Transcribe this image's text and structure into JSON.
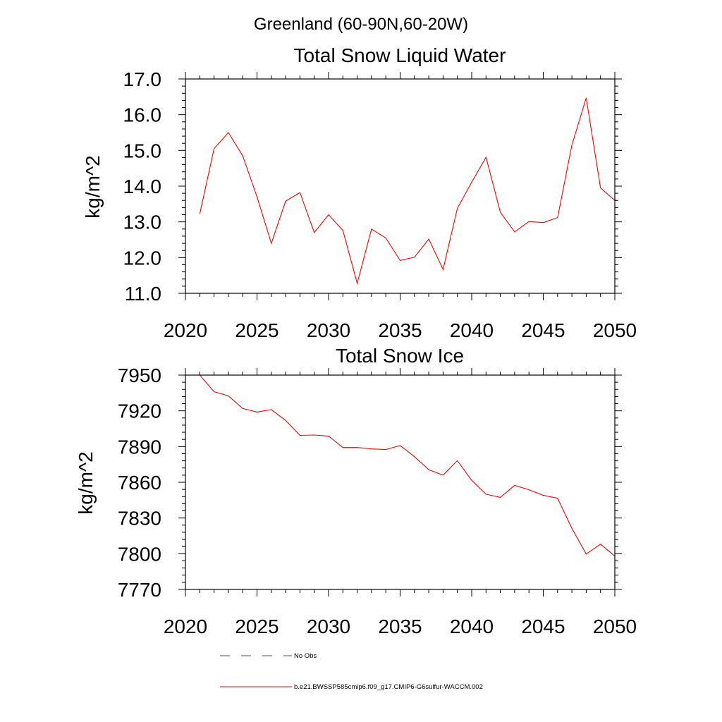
{
  "figure_title": "Greenland (60-90N,60-20W)",
  "chart_data": [
    {
      "type": "line",
      "title": "Total Snow Liquid Water",
      "xlabel": "",
      "ylabel": "kg/m^2",
      "xlim": [
        2020,
        2050
      ],
      "ylim": [
        11.0,
        17.0
      ],
      "xticks": [
        "2020",
        "2025",
        "2030",
        "2035",
        "2040",
        "2045",
        "2050"
      ],
      "yticks": [
        "11.0",
        "12.0",
        "13.0",
        "14.0",
        "15.0",
        "16.0",
        "17.0"
      ],
      "grid": false,
      "series": [
        {
          "name": "b.e21.BWSSP585cmip6.f09_g17.CMIP6-G6sulfur-WACCM.002",
          "color": "#ff0000",
          "x": [
            2021,
            2022,
            2023,
            2024,
            2025,
            2026,
            2027,
            2028,
            2029,
            2030,
            2031,
            2032,
            2033,
            2034,
            2035,
            2036,
            2037,
            2038,
            2039,
            2040,
            2041,
            2042,
            2043,
            2044,
            2045,
            2046,
            2047,
            2048,
            2049,
            2050
          ],
          "values": [
            13.22,
            15.05,
            15.5,
            14.85,
            13.7,
            12.4,
            13.58,
            13.82,
            12.7,
            13.2,
            12.76,
            11.28,
            12.8,
            12.55,
            11.92,
            12.01,
            12.52,
            11.67,
            13.38,
            14.11,
            14.81,
            13.27,
            12.72,
            13.01,
            12.98,
            13.12,
            15.15,
            16.47,
            13.95,
            13.6
          ]
        }
      ]
    },
    {
      "type": "line",
      "title": "Total Snow Ice",
      "xlabel": "",
      "ylabel": "kg/m^2",
      "xlim": [
        2020,
        2050
      ],
      "ylim": [
        7770,
        7950
      ],
      "xticks": [
        "2020",
        "2025",
        "2030",
        "2035",
        "2040",
        "2045",
        "2050"
      ],
      "yticks": [
        "7770",
        "7800",
        "7830",
        "7860",
        "7890",
        "7920",
        "7950"
      ],
      "grid": false,
      "series": [
        {
          "name": "b.e21.BWSSP585cmip6.f09_g17.CMIP6-G6sulfur-WACCM.002",
          "color": "#ff0000",
          "x": [
            2021,
            2022,
            2023,
            2024,
            2025,
            2026,
            2027,
            2028,
            2029,
            2030,
            2031,
            2032,
            2033,
            2034,
            2035,
            2036,
            2037,
            2038,
            2039,
            2040,
            2041,
            2042,
            2043,
            2044,
            2045,
            2046,
            2047,
            2048,
            2049,
            2050
          ],
          "values": [
            7950.0,
            7936.1,
            7932.6,
            7922.0,
            7919.0,
            7921.0,
            7912.0,
            7899.4,
            7899.7,
            7898.8,
            7889.2,
            7889.2,
            7888.0,
            7887.5,
            7890.9,
            7881.5,
            7870.6,
            7866.0,
            7878.2,
            7861.6,
            7850.0,
            7847.3,
            7857.4,
            7853.7,
            7849.0,
            7846.6,
            7821.3,
            7799.8,
            7808.0,
            7798.0
          ]
        }
      ]
    }
  ],
  "legend": {
    "entries": [
      {
        "label": "No Obs",
        "color": "#4a4a8a",
        "style": "dashed"
      },
      {
        "label": "b.e21.BWSSP585cmip6.f09_g17.CMIP6-G6sulfur-WACCM.002",
        "color": "#ff0000",
        "style": "solid"
      }
    ]
  }
}
